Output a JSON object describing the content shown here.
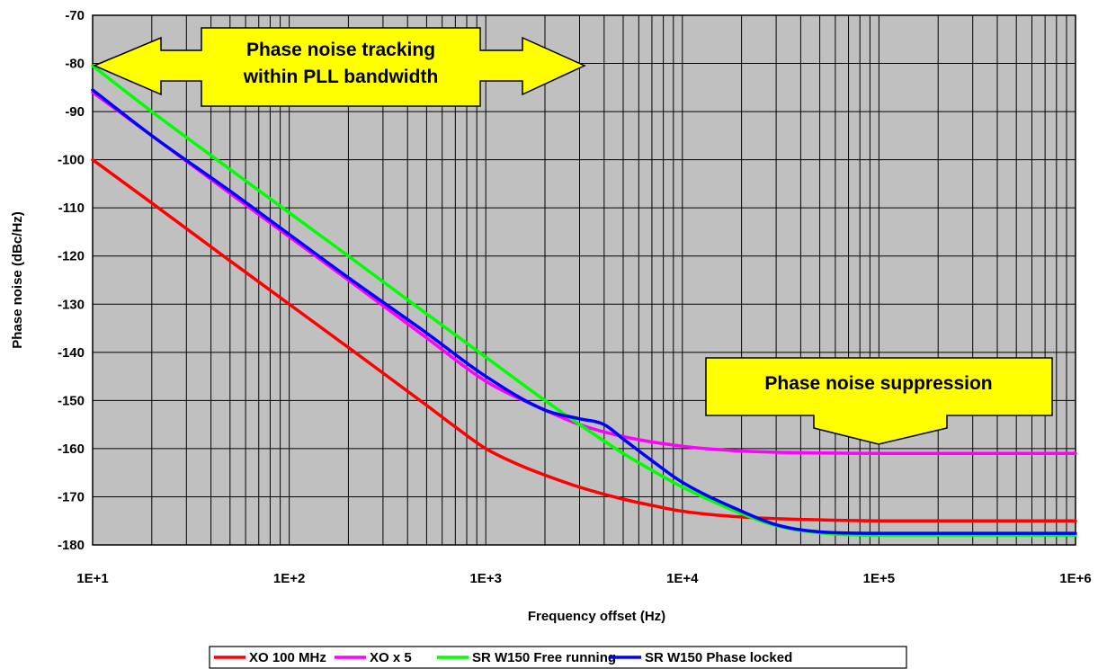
{
  "chart_data": {
    "type": "line",
    "xscale": "log",
    "xlabel": "Frequency offset (Hz)",
    "ylabel": "Phase noise (dBc/Hz)",
    "xlim": [
      10,
      1000000
    ],
    "ylim": [
      -180,
      -70
    ],
    "x_tick_labels": [
      "1E+1",
      "1E+2",
      "1E+3",
      "1E+4",
      "1E+5",
      "1E+6"
    ],
    "y_ticks": [
      -70,
      -80,
      -90,
      -100,
      -110,
      -120,
      -130,
      -140,
      -150,
      -160,
      -170,
      -180
    ],
    "grid": true,
    "legend_position": "bottom",
    "colors": {
      "plot_background": "#c0c0c0",
      "annotation_fill": "#ffff00"
    },
    "annotations": [
      {
        "text_lines": [
          "Phase noise tracking",
          "within PLL bandwidth"
        ],
        "shape": "double-arrow-left-right"
      },
      {
        "text_lines": [
          "Phase noise suppression"
        ],
        "shape": "down-arrow-callout"
      }
    ],
    "series": [
      {
        "name": "XO 100 MHz",
        "color": "#ff0000",
        "x": [
          10,
          20,
          50,
          100,
          200,
          500,
          700,
          1000,
          1500,
          2000,
          3000,
          5000,
          7000,
          10000,
          20000,
          50000,
          100000,
          1000000
        ],
        "y": [
          -100,
          -109,
          -121,
          -130,
          -139,
          -151,
          -155.5,
          -160,
          -163.5,
          -165.5,
          -168,
          -170.5,
          -171.8,
          -173,
          -174.2,
          -174.8,
          -175,
          -175
        ]
      },
      {
        "name": "XO x 5",
        "color": "#ff00ff",
        "x": [
          10,
          20,
          50,
          100,
          200,
          500,
          1000,
          2000,
          3000,
          5000,
          10000,
          20000,
          50000,
          100000,
          1000000
        ],
        "y": [
          -86,
          -95,
          -107,
          -116,
          -125,
          -137,
          -146,
          -152,
          -155,
          -157.5,
          -159.5,
          -160.5,
          -160.9,
          -161,
          -161
        ]
      },
      {
        "name": "SR W150 Free running",
        "color": "#00ff00",
        "x": [
          10,
          20,
          50,
          100,
          200,
          500,
          1000,
          2000,
          3000,
          5000,
          7000,
          10000,
          20000,
          30000,
          50000,
          100000,
          1000000
        ],
        "y": [
          -80.5,
          -90,
          -102,
          -111,
          -120,
          -132,
          -141,
          -150,
          -155,
          -161,
          -164.5,
          -168,
          -173.5,
          -176,
          -177.5,
          -178,
          -178
        ]
      },
      {
        "name": "SR W150 Phase locked",
        "color": "#0000ff",
        "x": [
          10,
          20,
          50,
          100,
          200,
          500,
          1000,
          2000,
          3000,
          4000,
          5000,
          7000,
          10000,
          20000,
          30000,
          50000,
          100000,
          1000000
        ],
        "y": [
          -85.5,
          -95,
          -106.5,
          -115.5,
          -124.5,
          -136,
          -145,
          -152,
          -153.8,
          -155,
          -158,
          -162.5,
          -167,
          -173,
          -175.8,
          -177.3,
          -177.6,
          -177.6
        ]
      }
    ]
  }
}
